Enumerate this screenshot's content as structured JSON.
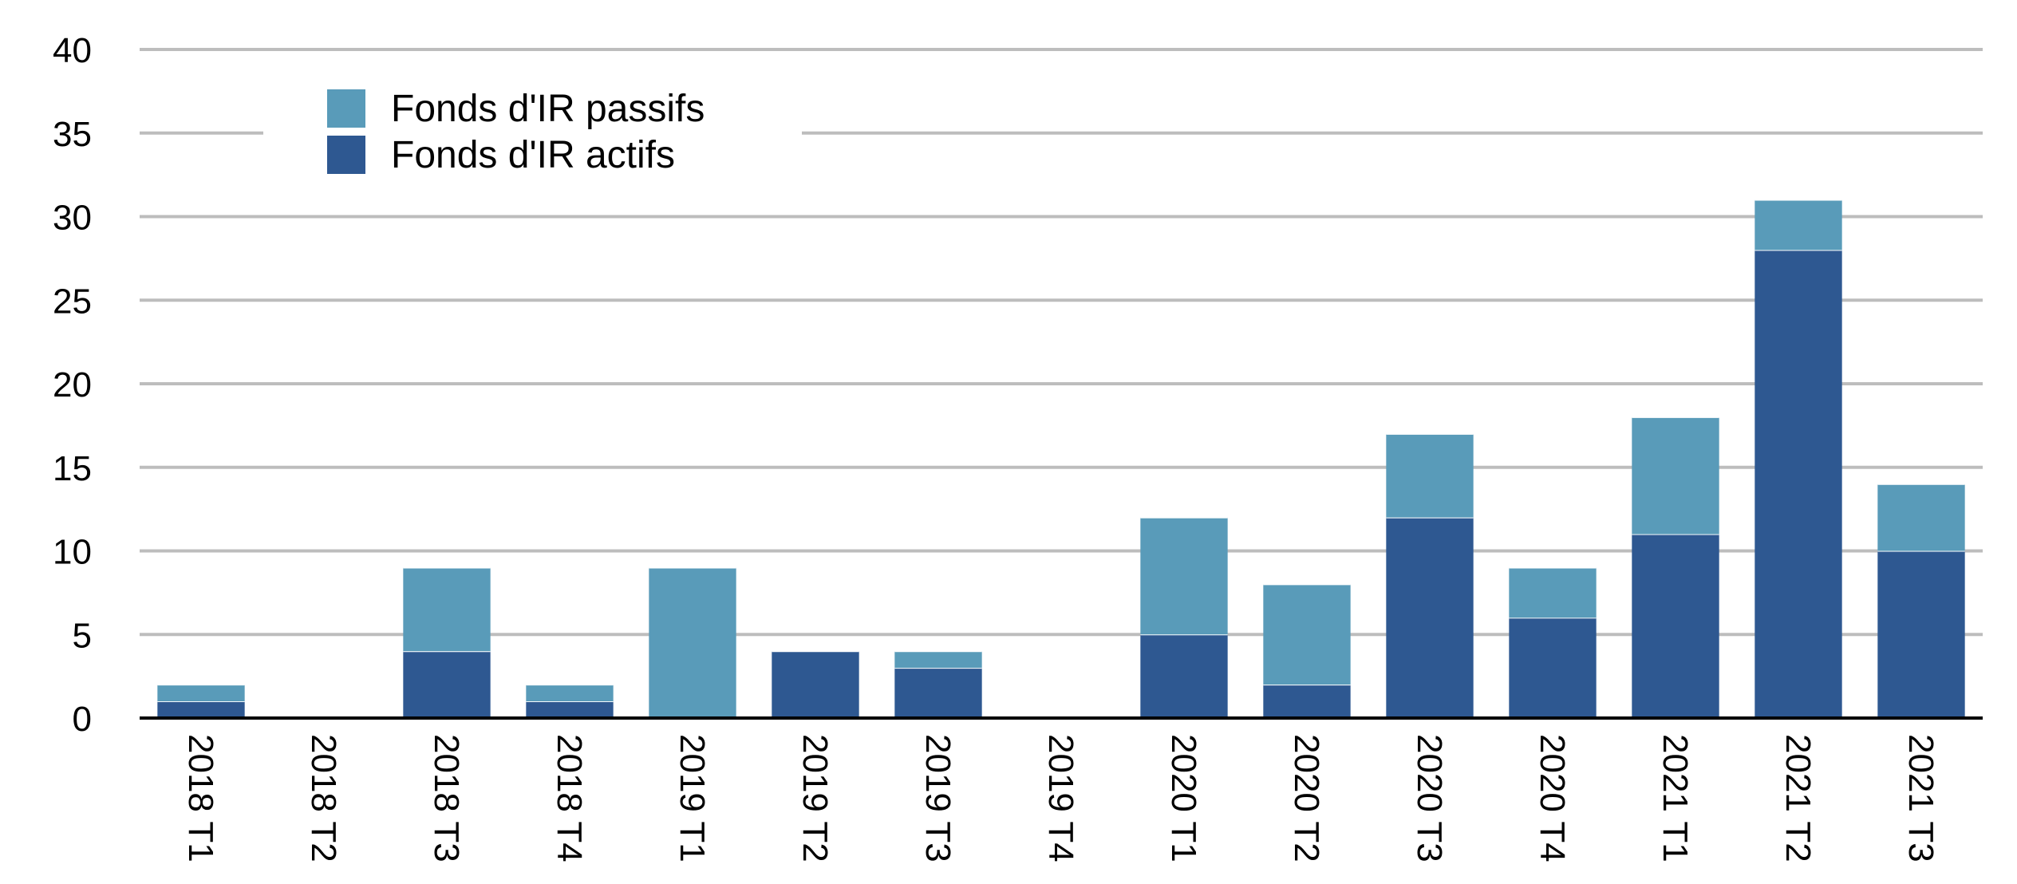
{
  "chart_data": {
    "type": "bar",
    "stacked": true,
    "title": "",
    "xlabel": "",
    "ylabel": "",
    "categories": [
      "2018 T1",
      "2018 T2",
      "2018 T3",
      "2018 T4",
      "2019 T1",
      "2019 T2",
      "2019 T3",
      "2019 T4",
      "2020 T1",
      "2020 T2",
      "2020 T3",
      "2020 T4",
      "2021 T1",
      "2021 T2",
      "2021 T3"
    ],
    "series": [
      {
        "name": "Fonds d'IR actifs",
        "color": "#2e5891",
        "values": [
          1,
          0,
          4,
          1,
          0,
          4,
          3,
          0,
          5,
          2,
          12,
          6,
          11,
          28,
          10
        ]
      },
      {
        "name": "Fonds d'IR passifs",
        "color": "#599bb9",
        "values": [
          1,
          0,
          5,
          1,
          9,
          0,
          1,
          0,
          7,
          6,
          5,
          3,
          7,
          3,
          4
        ]
      }
    ],
    "ylim": [
      0,
      40
    ],
    "yticks": [
      0,
      5,
      10,
      15,
      20,
      25,
      30,
      35,
      40
    ],
    "grid": true,
    "legend_position": "top-left",
    "legend_order": [
      "Fonds d'IR passifs",
      "Fonds d'IR actifs"
    ]
  }
}
